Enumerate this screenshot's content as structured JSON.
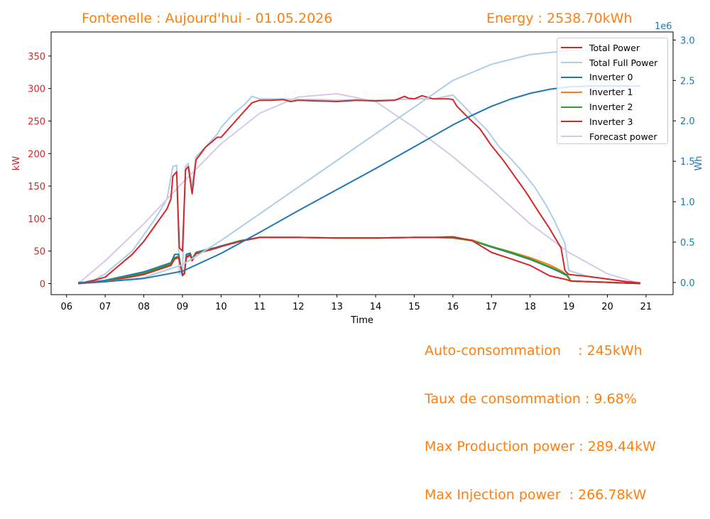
{
  "header": {
    "title": "Fontenelle : Aujourd'hui - 01.05.2026",
    "energy": "Energy : 2538.70kWh"
  },
  "stats": {
    "autoconsumption": "Auto-consommation    : 245kWh",
    "consumption_rate": "Taux de consommation : 9.68%",
    "max_production": "Max Production power : 289.44kW",
    "max_injection": "Max Injection power  : 266.78kW"
  },
  "chart_data": {
    "type": "line",
    "xlabel": "Time",
    "ylabel": "kW",
    "y2label": "Wh",
    "y2_offset_label": "1e6",
    "xlim": [
      5.6,
      21.7
    ],
    "ylim": [
      -17,
      387
    ],
    "y2lim": [
      -0.15,
      3.1
    ],
    "x_ticks": [
      6,
      7,
      8,
      9,
      10,
      11,
      12,
      13,
      14,
      15,
      16,
      17,
      18,
      19,
      20,
      21
    ],
    "x_tick_labels": [
      "06",
      "07",
      "08",
      "09",
      "10",
      "11",
      "12",
      "13",
      "14",
      "15",
      "16",
      "17",
      "18",
      "19",
      "20",
      "21"
    ],
    "y_ticks": [
      0,
      50,
      100,
      150,
      200,
      250,
      300,
      350
    ],
    "y2_ticks": [
      0.0,
      0.5,
      1.0,
      1.5,
      2.0,
      2.5,
      3.0
    ],
    "y2_tick_labels": [
      "0.0",
      "0.5",
      "1.0",
      "1.5",
      "2.0",
      "2.5",
      "3.0"
    ],
    "grid": false,
    "legend_position": "top-right",
    "colors": {
      "left_axis": "#d62728",
      "right_axis": "#1f77b4",
      "header": "#ff7f0e"
    },
    "series": [
      {
        "name": "Total Full Power",
        "axis": "left",
        "color": "#aecde6",
        "x": [
          6.3,
          6.7,
          7.0,
          7.3,
          7.7,
          8.0,
          8.3,
          8.6,
          8.75,
          8.85,
          8.92,
          9.0,
          9.08,
          9.15,
          9.25,
          9.35,
          9.6,
          9.9,
          10.0,
          10.3,
          10.6,
          10.8,
          11.0,
          11.5,
          12.0,
          12.5,
          13.0,
          13.5,
          14.0,
          14.5,
          15.0,
          15.5,
          16.0,
          16.3,
          16.6,
          16.9,
          17.2,
          17.5,
          17.8,
          18.1,
          18.4,
          18.6,
          18.8,
          18.9,
          19.0,
          19.5,
          20.0,
          20.5,
          20.85
        ],
        "y": [
          0,
          5,
          15,
          30,
          50,
          75,
          100,
          130,
          180,
          182,
          15,
          15,
          180,
          185,
          150,
          195,
          210,
          230,
          240,
          260,
          275,
          288,
          284,
          284,
          283,
          283,
          282,
          283,
          282,
          283,
          284,
          284,
          290,
          272,
          253,
          235,
          210,
          192,
          172,
          150,
          122,
          100,
          75,
          62,
          20,
          11,
          7,
          3,
          1
        ]
      },
      {
        "name": "Forecast power",
        "axis": "left",
        "color": "#d8c8e6",
        "x": [
          6.3,
          7.0,
          8.0,
          9.0,
          10.0,
          11.0,
          12.0,
          13.0,
          14.0,
          15.0,
          16.0,
          17.0,
          18.0,
          19.0,
          20.0,
          20.85
        ],
        "y": [
          0,
          35,
          92,
          155,
          215,
          262,
          287,
          292,
          280,
          240,
          195,
          145,
          92,
          48,
          15,
          0
        ]
      },
      {
        "name": "Inverter 0",
        "axis": "left",
        "color": "#1f77b4",
        "x": [
          6.3,
          7.0,
          8.0,
          8.7,
          8.8,
          8.9,
          9.0,
          9.05,
          9.1,
          9.2,
          9.25,
          9.35,
          9.6,
          9.9,
          10.0,
          10.5,
          11.0,
          12.0,
          13.0,
          14.0,
          15.0,
          15.5,
          16.0,
          16.5,
          17.0,
          17.5,
          18.0,
          18.5,
          18.8,
          18.95,
          19.05,
          19.5,
          20.0,
          20.85
        ],
        "y": [
          0,
          5,
          18,
          32,
          45,
          45,
          12,
          15,
          45,
          47,
          38,
          48,
          52,
          56,
          58,
          66,
          71,
          71,
          70,
          70,
          71,
          71,
          72,
          66,
          56,
          47,
          37,
          25,
          17,
          12,
          4,
          3,
          2,
          0
        ]
      },
      {
        "name": "Inverter 1",
        "axis": "left",
        "color": "#ff7f0e",
        "x": [
          6.3,
          7.0,
          8.0,
          8.7,
          8.8,
          8.9,
          9.0,
          9.05,
          9.1,
          9.2,
          9.25,
          9.35,
          9.6,
          9.9,
          10.0,
          10.5,
          11.0,
          12.0,
          13.0,
          14.0,
          15.0,
          15.5,
          16.0,
          16.5,
          17.0,
          17.5,
          18.0,
          18.5,
          18.8,
          18.95,
          19.05,
          19.5,
          20.0,
          20.85
        ],
        "y": [
          0,
          3,
          14,
          28,
          38,
          40,
          15,
          16,
          40,
          43,
          36,
          46,
          50,
          55,
          57,
          66,
          71,
          71,
          70,
          70,
          71,
          71,
          71,
          67,
          57,
          49,
          40,
          29,
          20,
          13,
          4,
          3,
          2,
          0
        ]
      },
      {
        "name": "Inverter 2",
        "axis": "left",
        "color": "#2ca02c",
        "x": [
          6.3,
          7.0,
          8.0,
          8.7,
          8.8,
          8.9,
          9.0,
          9.05,
          9.1,
          9.2,
          9.25,
          9.35,
          9.6,
          9.9,
          10.0,
          10.5,
          11.0,
          12.0,
          13.0,
          14.0,
          15.0,
          15.5,
          16.0,
          16.5,
          17.0,
          17.5,
          18.0,
          18.5,
          18.8,
          18.95,
          19.05,
          19.5,
          20.0,
          20.85
        ],
        "y": [
          0,
          4,
          16,
          30,
          40,
          42,
          14,
          15,
          42,
          45,
          37,
          47,
          51,
          55,
          57,
          66,
          71,
          71,
          70,
          70,
          71,
          71,
          70,
          66,
          57,
          48,
          38,
          26,
          18,
          14,
          4,
          3,
          2,
          0
        ]
      },
      {
        "name": "Inverter 3",
        "axis": "left",
        "color": "#d62728",
        "x": [
          6.3,
          7.0,
          8.0,
          8.7,
          8.8,
          8.9,
          9.0,
          9.05,
          9.1,
          9.2,
          9.25,
          9.35,
          9.6,
          9.9,
          10.0,
          10.5,
          11.0,
          12.0,
          13.0,
          14.0,
          15.0,
          15.5,
          16.0,
          16.5,
          17.0,
          17.5,
          18.0,
          18.5,
          18.8,
          18.95,
          19.05,
          19.5,
          20.0,
          20.85
        ],
        "y": [
          0,
          3,
          14,
          28,
          38,
          40,
          14,
          15,
          40,
          44,
          35,
          46,
          50,
          55,
          57,
          65,
          71,
          71,
          70,
          70,
          71,
          71,
          72,
          66,
          48,
          38,
          28,
          12,
          8,
          6,
          4,
          3,
          2,
          0
        ]
      },
      {
        "name": "Total Power",
        "axis": "left",
        "color": "#d62728",
        "x": [
          6.3,
          6.7,
          7.0,
          7.3,
          7.7,
          8.0,
          8.3,
          8.6,
          8.7,
          8.75,
          8.85,
          8.92,
          9.0,
          9.08,
          9.15,
          9.25,
          9.35,
          9.6,
          9.9,
          10.0,
          10.3,
          10.6,
          10.8,
          11.0,
          11.3,
          11.6,
          11.8,
          12.0,
          12.5,
          13.0,
          13.5,
          14.0,
          14.5,
          14.75,
          14.85,
          15.0,
          15.2,
          15.5,
          15.9,
          16.0,
          16.1,
          16.4,
          16.7,
          17.0,
          17.3,
          17.6,
          17.9,
          18.2,
          18.5,
          18.8,
          18.9,
          19.0,
          19.5,
          20.0,
          20.5,
          20.85
        ],
        "y": [
          0,
          5,
          10,
          25,
          45,
          65,
          90,
          115,
          130,
          165,
          172,
          55,
          50,
          175,
          180,
          138,
          190,
          210,
          225,
          225,
          245,
          265,
          278,
          282,
          282,
          283,
          280,
          282,
          281,
          280,
          282,
          281,
          282,
          288,
          285,
          284,
          289,
          284,
          284,
          283,
          273,
          255,
          238,
          212,
          190,
          165,
          140,
          112,
          85,
          55,
          20,
          14,
          11,
          7,
          3,
          1
        ]
      },
      {
        "name": "Energy",
        "axis": "right",
        "color": "#aecde6",
        "x": [
          6.3,
          7.0,
          8.0,
          9.0,
          10.0,
          11.0,
          12.0,
          13.0,
          14.0,
          15.0,
          16.0,
          17.0,
          18.0,
          19.0,
          20.0,
          20.85
        ],
        "y": [
          0.0,
          0.01,
          0.06,
          0.22,
          0.52,
          0.85,
          1.18,
          1.51,
          1.84,
          2.17,
          2.5,
          2.7,
          2.82,
          2.87,
          2.88,
          2.88
        ]
      },
      {
        "name": "Inverter 0",
        "axis": "right",
        "color": "#1f77b4",
        "x": [
          6.3,
          7.0,
          8.0,
          9.0,
          10.0,
          11.0,
          12.0,
          13.0,
          14.0,
          15.0,
          16.0,
          16.5,
          17.0,
          17.5,
          18.0,
          18.5,
          19.0,
          19.5,
          20.0,
          20.85
        ],
        "y": [
          0.0,
          0.01,
          0.05,
          0.14,
          0.36,
          0.62,
          0.89,
          1.15,
          1.41,
          1.68,
          1.95,
          2.07,
          2.18,
          2.27,
          2.34,
          2.39,
          2.42,
          2.43,
          2.43,
          2.43
        ]
      }
    ],
    "legend": [
      "Total Power",
      "Total Full Power",
      "Inverter 0",
      "Inverter 1",
      "Inverter 2",
      "Inverter 3",
      "Forecast power"
    ],
    "legend_colors": [
      "#d62728",
      "#aecde6",
      "#1f77b4",
      "#ff7f0e",
      "#2ca02c",
      "#d62728",
      "#d8c8e6"
    ]
  }
}
